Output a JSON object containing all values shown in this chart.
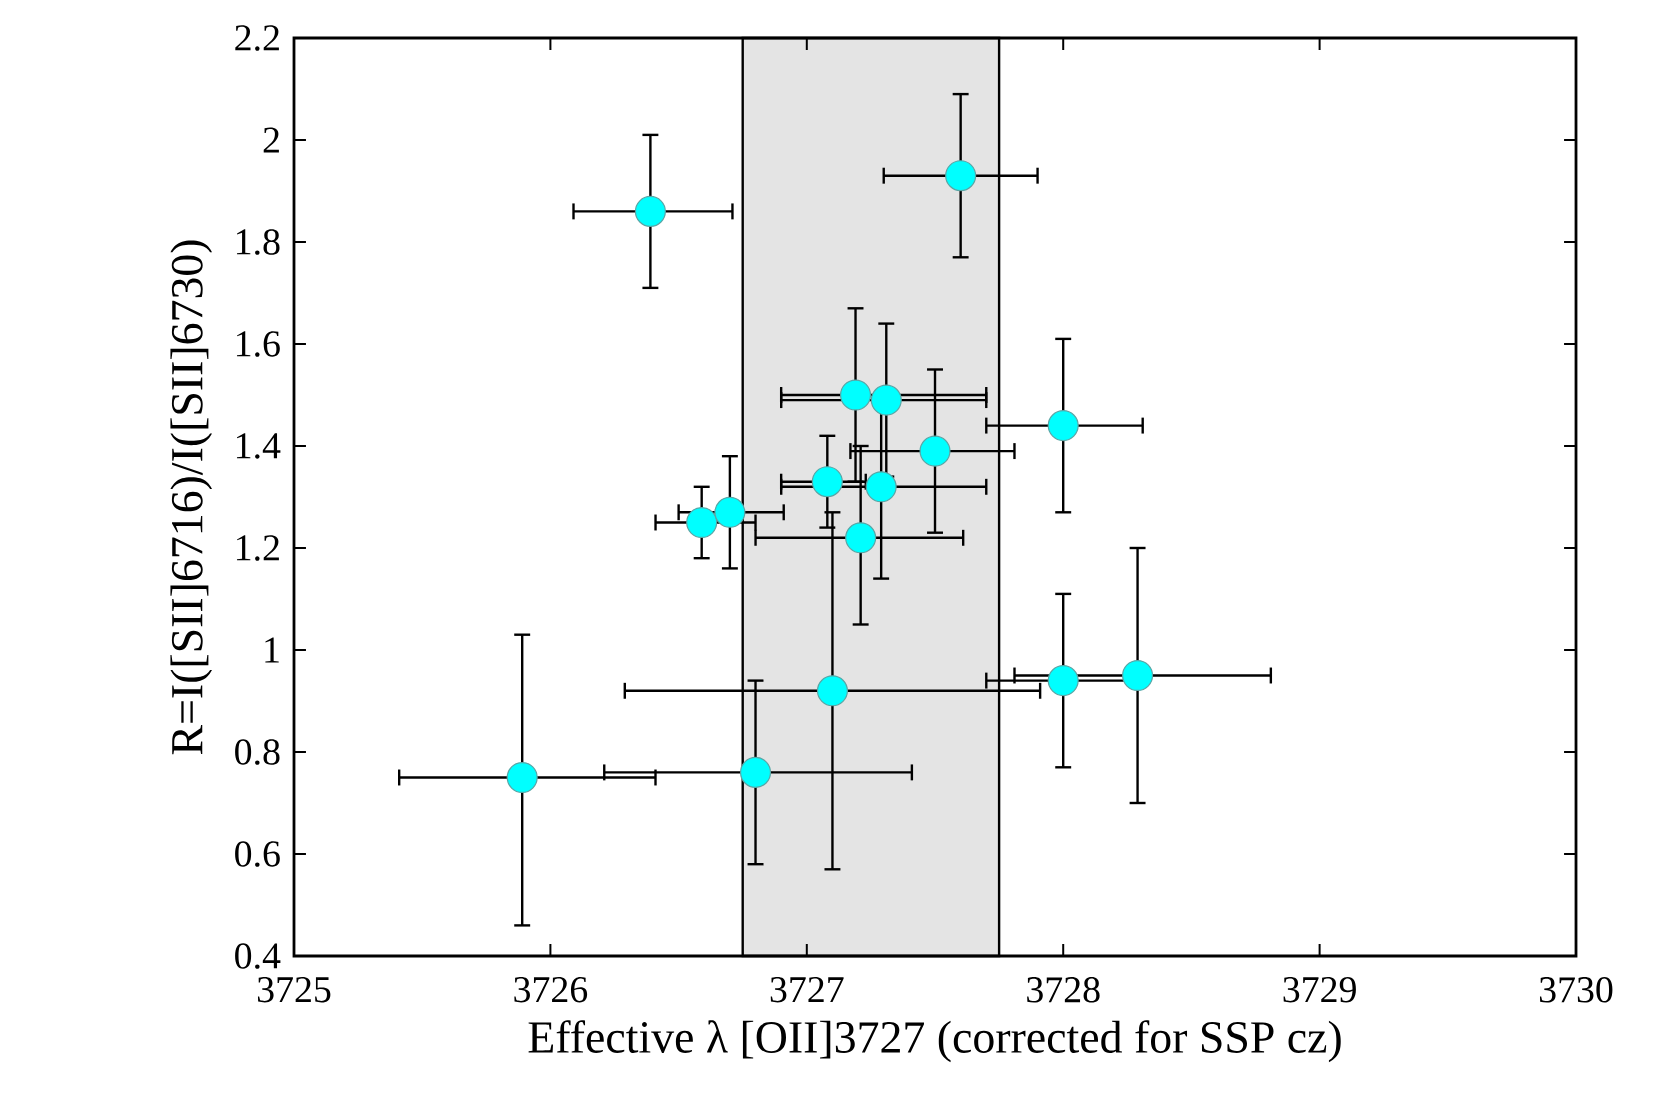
{
  "chart_data": {
    "type": "scatter",
    "xlabel": "Effective λ [OII]3727 (corrected for SSP cz)",
    "ylabel": "R=I([SII]6716)/I([SII]6730)",
    "x": [
      3726.39,
      3727.6,
      3727.19,
      3727.31,
      3727.5,
      3727.08,
      3727.29,
      3727.21,
      3726.59,
      3726.7,
      3728.0,
      3725.89,
      3726.8,
      3727.1,
      3728.0,
      3728.29
    ],
    "values": [
      1.86,
      1.93,
      1.5,
      1.49,
      1.39,
      1.33,
      1.32,
      1.22,
      1.25,
      1.27,
      1.44,
      0.75,
      0.76,
      0.92,
      0.94,
      0.95
    ],
    "xerrors": [
      [
        3726.09,
        3726.71
      ],
      [
        3727.3,
        3727.9
      ],
      [
        3726.9,
        3727.7
      ],
      [
        3726.9,
        3727.7
      ],
      [
        3727.17,
        3727.81
      ],
      [
        3726.9,
        3727.23
      ],
      [
        3726.9,
        3727.7
      ],
      [
        3726.8,
        3727.61
      ],
      [
        3726.41,
        3726.8
      ],
      [
        3726.5,
        3726.91
      ],
      [
        3727.7,
        3728.31
      ],
      [
        3725.41,
        3726.41
      ],
      [
        3726.21,
        3727.41
      ],
      [
        3726.29,
        3727.91
      ],
      [
        3727.7,
        3728.3
      ],
      [
        3727.81,
        3728.81
      ]
    ],
    "errors": [
      [
        1.71,
        2.01
      ],
      [
        1.77,
        2.09
      ],
      [
        1.33,
        1.67
      ],
      [
        1.34,
        1.64
      ],
      [
        1.23,
        1.55
      ],
      [
        1.24,
        1.42
      ],
      [
        1.14,
        1.5
      ],
      [
        1.05,
        1.4
      ],
      [
        1.18,
        1.32
      ],
      [
        1.16,
        1.38
      ],
      [
        1.27,
        1.61
      ],
      [
        0.46,
        1.03
      ],
      [
        0.58,
        0.94
      ],
      [
        0.57,
        1.27
      ],
      [
        0.77,
        1.11
      ],
      [
        0.7,
        1.2
      ]
    ],
    "color": "#00ffff",
    "marker": "circle",
    "xlim": [
      3725,
      3730
    ],
    "ylim": [
      0.4,
      2.2
    ],
    "xticks": [
      3725,
      3726,
      3727,
      3728,
      3729,
      3730
    ],
    "yticks": [
      0.4,
      0.6,
      0.8,
      1,
      1.2,
      1.4,
      1.6,
      1.8,
      2,
      2.2
    ],
    "bands": [
      {
        "axis": "x",
        "from": 3726.75,
        "to": 3727.75,
        "color": "#e4e4e4"
      }
    ]
  }
}
